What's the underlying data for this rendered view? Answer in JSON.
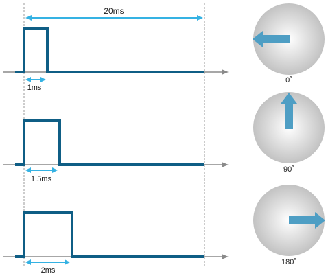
{
  "period_label": "20ms",
  "rows": [
    {
      "pulse_label": "1ms",
      "angle_label": "0˚",
      "pulse_ms": 1,
      "angle_deg": 0
    },
    {
      "pulse_label": "1.5ms",
      "angle_label": "90˚",
      "pulse_ms": 1.5,
      "angle_deg": 90
    },
    {
      "pulse_label": "2ms",
      "angle_label": "180˚",
      "pulse_ms": 2,
      "angle_deg": 180
    }
  ],
  "colors": {
    "signal": "#0f5e85",
    "dimension": "#35b2e3",
    "axis": "#8a8a8a",
    "guide": "#9a9a9a",
    "arrow": "#4e9ec4",
    "dial_light": "#ffffff",
    "dial_dark": "#c2c2c2"
  }
}
